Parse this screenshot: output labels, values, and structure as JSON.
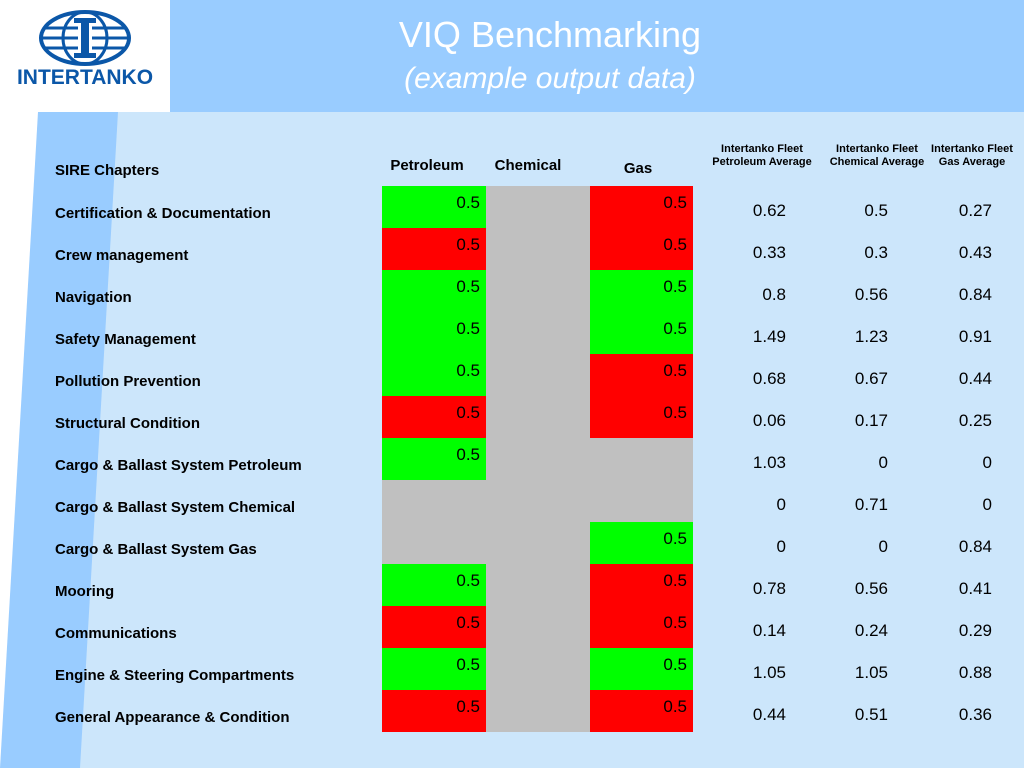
{
  "logo": {
    "text": "INTERTANKO"
  },
  "title": "VIQ Benchmarking",
  "subtitle": "(example output data)",
  "table": {
    "header_label": "SIRE Chapters",
    "columns": {
      "petroleum": "Petroleum",
      "chemical": "Chemical",
      "gas": "Gas",
      "fleet_petroleum_line1": "Intertanko Fleet",
      "fleet_petroleum_line2": "Petroleum Average",
      "fleet_chemical_line1": "Intertanko Fleet",
      "fleet_chemical_line2": "Chemical Average",
      "fleet_gas_line1": "Intertanko Fleet",
      "fleet_gas_line2": "Gas Average"
    },
    "colors": {
      "green": "#00ff00",
      "red": "#ff0000",
      "grey": "#c0c0c0"
    },
    "rows": [
      {
        "chapter": "Certification & Documentation",
        "petroleum": {
          "value": "0.5",
          "status": "green"
        },
        "chemical": {
          "value": "",
          "status": "grey"
        },
        "gas": {
          "value": "0.5",
          "status": "red"
        },
        "avg_petroleum": "0.62",
        "avg_chemical": "0.5",
        "avg_gas": "0.27"
      },
      {
        "chapter": "Crew management",
        "petroleum": {
          "value": "0.5",
          "status": "red"
        },
        "chemical": {
          "value": "",
          "status": "grey"
        },
        "gas": {
          "value": "0.5",
          "status": "red"
        },
        "avg_petroleum": "0.33",
        "avg_chemical": "0.3",
        "avg_gas": "0.43"
      },
      {
        "chapter": "Navigation",
        "petroleum": {
          "value": "0.5",
          "status": "green"
        },
        "chemical": {
          "value": "",
          "status": "grey"
        },
        "gas": {
          "value": "0.5",
          "status": "green"
        },
        "avg_petroleum": "0.8",
        "avg_chemical": "0.56",
        "avg_gas": "0.84"
      },
      {
        "chapter": "Safety Management",
        "petroleum": {
          "value": "0.5",
          "status": "green"
        },
        "chemical": {
          "value": "",
          "status": "grey"
        },
        "gas": {
          "value": "0.5",
          "status": "green"
        },
        "avg_petroleum": "1.49",
        "avg_chemical": "1.23",
        "avg_gas": "0.91"
      },
      {
        "chapter": "Pollution Prevention",
        "petroleum": {
          "value": "0.5",
          "status": "green"
        },
        "chemical": {
          "value": "",
          "status": "grey"
        },
        "gas": {
          "value": "0.5",
          "status": "red"
        },
        "avg_petroleum": "0.68",
        "avg_chemical": "0.67",
        "avg_gas": "0.44"
      },
      {
        "chapter": "Structural Condition",
        "petroleum": {
          "value": "0.5",
          "status": "red"
        },
        "chemical": {
          "value": "",
          "status": "grey"
        },
        "gas": {
          "value": "0.5",
          "status": "red"
        },
        "avg_petroleum": "0.06",
        "avg_chemical": "0.17",
        "avg_gas": "0.25"
      },
      {
        "chapter": "Cargo & Ballast System Petroleum",
        "petroleum": {
          "value": "0.5",
          "status": "green"
        },
        "chemical": {
          "value": "",
          "status": "grey"
        },
        "gas": {
          "value": "",
          "status": "grey"
        },
        "avg_petroleum": "1.03",
        "avg_chemical": "0",
        "avg_gas": "0"
      },
      {
        "chapter": "Cargo & Ballast System Chemical",
        "petroleum": {
          "value": "",
          "status": "grey"
        },
        "chemical": {
          "value": "",
          "status": "grey"
        },
        "gas": {
          "value": "",
          "status": "grey"
        },
        "avg_petroleum": "0",
        "avg_chemical": "0.71",
        "avg_gas": "0"
      },
      {
        "chapter": "Cargo & Ballast System Gas",
        "petroleum": {
          "value": "",
          "status": "grey"
        },
        "chemical": {
          "value": "",
          "status": "grey"
        },
        "gas": {
          "value": "0.5",
          "status": "green"
        },
        "avg_petroleum": "0",
        "avg_chemical": "0",
        "avg_gas": "0.84"
      },
      {
        "chapter": "Mooring",
        "petroleum": {
          "value": "0.5",
          "status": "green"
        },
        "chemical": {
          "value": "",
          "status": "grey"
        },
        "gas": {
          "value": "0.5",
          "status": "red"
        },
        "avg_petroleum": "0.78",
        "avg_chemical": "0.56",
        "avg_gas": "0.41"
      },
      {
        "chapter": "Communications",
        "petroleum": {
          "value": "0.5",
          "status": "red"
        },
        "chemical": {
          "value": "",
          "status": "grey"
        },
        "gas": {
          "value": "0.5",
          "status": "red"
        },
        "avg_petroleum": "0.14",
        "avg_chemical": "0.24",
        "avg_gas": "0.29"
      },
      {
        "chapter": "Engine & Steering Compartments",
        "petroleum": {
          "value": "0.5",
          "status": "green"
        },
        "chemical": {
          "value": "",
          "status": "grey"
        },
        "gas": {
          "value": "0.5",
          "status": "green"
        },
        "avg_petroleum": "1.05",
        "avg_chemical": "1.05",
        "avg_gas": "0.88"
      },
      {
        "chapter": "General Appearance & Condition",
        "petroleum": {
          "value": "0.5",
          "status": "red"
        },
        "chemical": {
          "value": "",
          "status": "grey"
        },
        "gas": {
          "value": "0.5",
          "status": "red"
        },
        "avg_petroleum": "0.44",
        "avg_chemical": "0.51",
        "avg_gas": "0.36"
      }
    ]
  }
}
